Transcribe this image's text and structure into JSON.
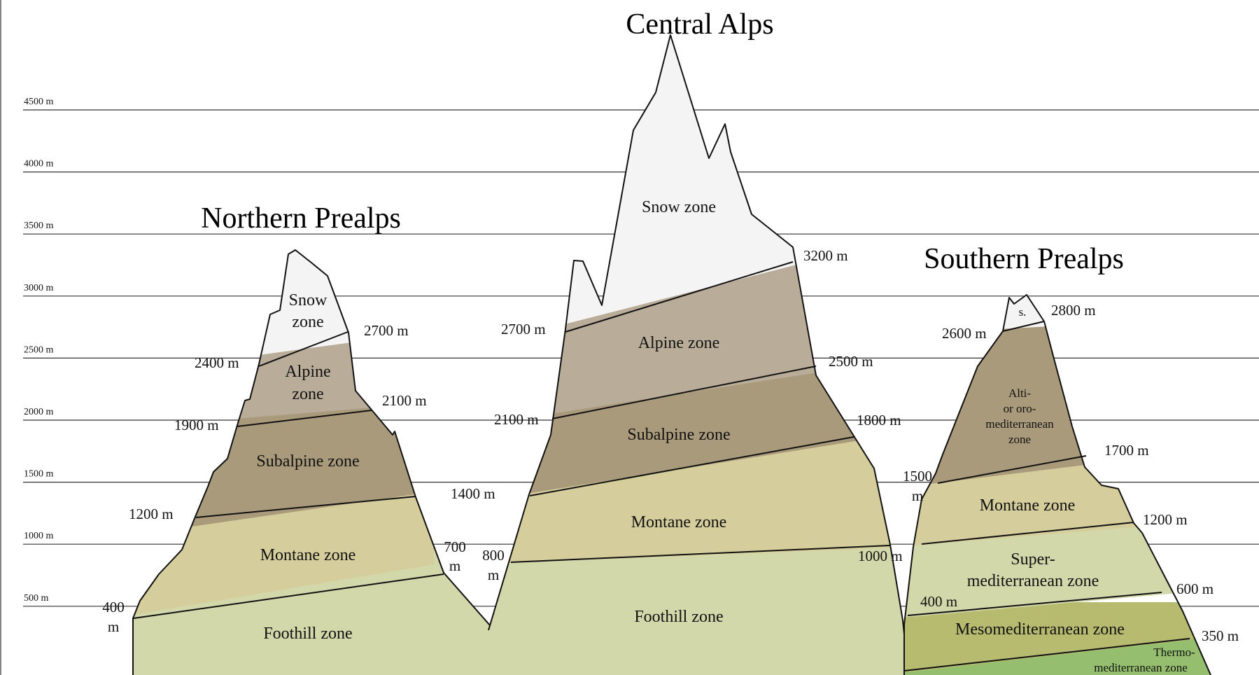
{
  "colors": {
    "snow": "#f5f4f4",
    "alpine": "#b9ad9a",
    "subalpine": "#a99a7b",
    "montane": "#d5cd9c",
    "foothill": "#d3d8aa",
    "altimediterranean": "#a99a7b",
    "supermediterranean": "#d3d8aa",
    "mesomediterranean": "#b6bb70",
    "thermomediterranean": "#95bf6e"
  },
  "y_axis": {
    "ticks": [
      "4500 m",
      "4000 m",
      "3500 m",
      "3000 m",
      "2500 m",
      "2000 m",
      "1500 m",
      "1000 m",
      "500 m"
    ]
  },
  "northern": {
    "title": "Northern Prealps",
    "zones": {
      "snow_1": "Snow",
      "snow_2": "zone",
      "alpine_1": "Alpine",
      "alpine_2": "zone",
      "subalpine": "Subalpine zone",
      "montane": "Montane zone",
      "foothill": "Foothill zone"
    },
    "elevations": {
      "left_2400": "2400 m",
      "right_2700": "2700 m",
      "left_1900": "1900 m",
      "right_2100": "2100 m",
      "left_1200": "1200 m",
      "right_700_1": "700",
      "right_700_2": "m",
      "left_400_1": "400",
      "left_400_2": "m"
    }
  },
  "central": {
    "title": "Central Alps",
    "zones": {
      "snow": "Snow zone",
      "alpine": "Alpine zone",
      "subalpine": "Subalpine zone",
      "montane": "Montane zone",
      "foothill": "Foothill zone"
    },
    "elevations": {
      "right_3200": "3200 m",
      "left_2700": "2700 m",
      "right_2500": "2500 m",
      "left_2100": "2100 m",
      "right_1800": "1800 m",
      "left_1400": "1400 m",
      "left_800_1": "800",
      "left_800_2": "m",
      "right_1000": "1000 m"
    }
  },
  "southern": {
    "title": "Southern Prealps",
    "zones": {
      "snow": "s.",
      "alti_1": "Alti-",
      "alti_2": "or oro-",
      "alti_3": "mediterranean",
      "alti_4": "zone",
      "montane": "Montane zone",
      "super_1": "Super-",
      "super_2": "mediterranean zone",
      "meso": "Mesomediterranean zone",
      "thermo_1": "Thermo-",
      "thermo_2": "mediterranean zone"
    },
    "elevations": {
      "right_2800": "2800 m",
      "left_2600": "2600 m",
      "right_1700": "1700 m",
      "left_1500_1": "1500",
      "left_1500_2": "m",
      "right_1200": "1200 m",
      "right_600": "600 m",
      "left_400": "400 m",
      "right_350": "350 m"
    }
  }
}
